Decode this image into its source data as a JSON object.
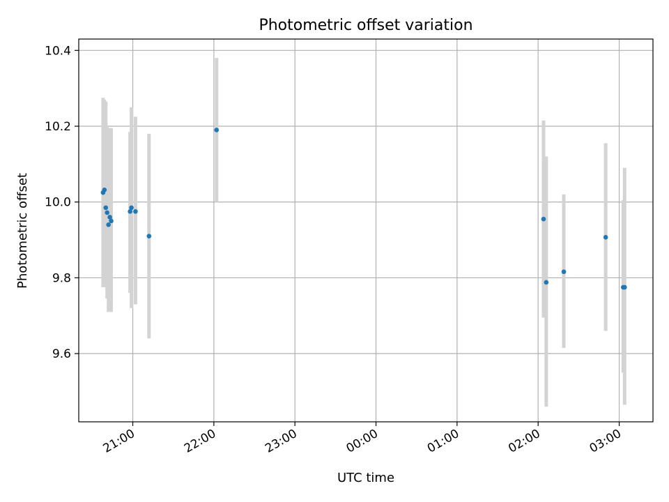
{
  "chart_data": {
    "type": "scatter",
    "title": "Photometric offset variation",
    "xlabel": "UTC time",
    "ylabel": "Photometric offset",
    "x_axis_type": "time",
    "xlim": [
      "20:20",
      "03:25"
    ],
    "ylim": [
      9.42,
      10.43
    ],
    "grid": true,
    "x_ticks": [
      "21:00",
      "22:00",
      "23:00",
      "00:00",
      "01:00",
      "02:00",
      "03:00"
    ],
    "y_ticks": [
      "9.6",
      "9.8",
      "10.0",
      "10.2",
      "10.4"
    ],
    "marker_color": "#1f77b4",
    "errorbar_color": "#d3d3d3",
    "points": [
      {
        "x": "20:38",
        "y": 10.025,
        "err_low": 9.775,
        "err_high": 10.275
      },
      {
        "x": "20:39",
        "y": 10.032,
        "err_low": 9.775,
        "err_high": 10.27
      },
      {
        "x": "20:40",
        "y": 9.985,
        "err_low": 9.79,
        "err_high": 10.265
      },
      {
        "x": "20:41",
        "y": 9.972,
        "err_low": 9.745,
        "err_high": 10.2
      },
      {
        "x": "20:42",
        "y": 9.94,
        "err_low": 9.71,
        "err_high": 10.17
      },
      {
        "x": "20:43",
        "y": 9.96,
        "err_low": 9.71,
        "err_high": 10.195
      },
      {
        "x": "20:44",
        "y": 9.95,
        "err_low": 9.71,
        "err_high": 10.195
      },
      {
        "x": "20:58",
        "y": 9.975,
        "err_low": 9.76,
        "err_high": 10.185
      },
      {
        "x": "20:59",
        "y": 9.985,
        "err_low": 9.72,
        "err_high": 10.25
      },
      {
        "x": "21:02",
        "y": 9.975,
        "err_low": 9.73,
        "err_high": 10.225
      },
      {
        "x": "21:12",
        "y": 9.91,
        "err_low": 9.64,
        "err_high": 10.18
      },
      {
        "x": "22:02",
        "y": 10.19,
        "err_low": 10.0,
        "err_high": 10.38
      },
      {
        "x": "02:04",
        "y": 9.955,
        "err_low": 9.695,
        "err_high": 10.215
      },
      {
        "x": "02:06",
        "y": 9.788,
        "err_low": 9.46,
        "err_high": 10.12
      },
      {
        "x": "02:19",
        "y": 9.816,
        "err_low": 9.615,
        "err_high": 10.02
      },
      {
        "x": "02:50",
        "y": 9.907,
        "err_low": 9.66,
        "err_high": 10.155
      },
      {
        "x": "03:03",
        "y": 9.775,
        "err_low": 9.55,
        "err_high": 10.005
      },
      {
        "x": "03:04",
        "y": 9.775,
        "err_low": 9.465,
        "err_high": 10.09
      }
    ]
  }
}
